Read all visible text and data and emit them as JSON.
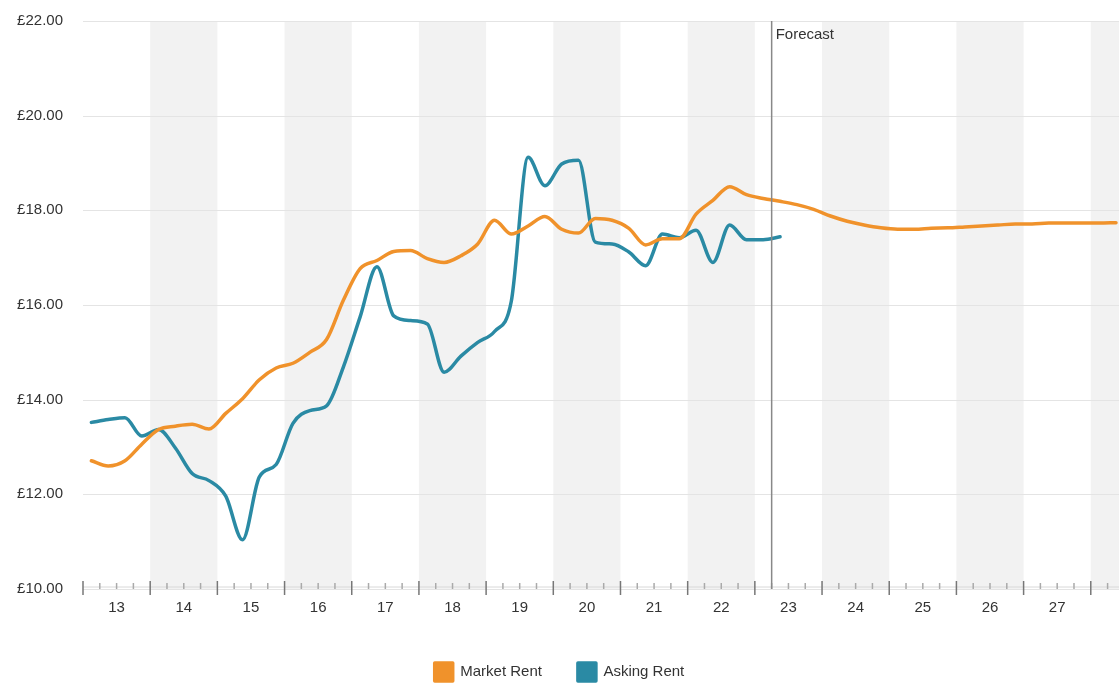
{
  "chart_data": {
    "type": "line",
    "xlim": [
      13,
      28.42
    ],
    "ylim": [
      10,
      22
    ],
    "yticks": [
      {
        "value": 10,
        "label": "£10.00"
      },
      {
        "value": 12,
        "label": "£12.00"
      },
      {
        "value": 14,
        "label": "£14.00"
      },
      {
        "value": 16,
        "label": "£16.00"
      },
      {
        "value": 18,
        "label": "£18.00"
      },
      {
        "value": 20,
        "label": "£20.00"
      },
      {
        "value": 22,
        "label": "£22.00"
      }
    ],
    "xticks": [
      {
        "value": 13,
        "label": null
      },
      {
        "value": 13.25,
        "label": null
      },
      {
        "value": 13.5,
        "label": "13"
      },
      {
        "value": 13.75,
        "label": null
      },
      {
        "value": 14,
        "label": null
      },
      {
        "value": 14.25,
        "label": null
      },
      {
        "value": 14.5,
        "label": "14"
      },
      {
        "value": 14.75,
        "label": null
      },
      {
        "value": 15,
        "label": null
      },
      {
        "value": 15.25,
        "label": null
      },
      {
        "value": 15.5,
        "label": "15"
      },
      {
        "value": 15.75,
        "label": null
      },
      {
        "value": 16,
        "label": null
      },
      {
        "value": 16.25,
        "label": null
      },
      {
        "value": 16.5,
        "label": "16"
      },
      {
        "value": 16.75,
        "label": null
      },
      {
        "value": 17,
        "label": null
      },
      {
        "value": 17.25,
        "label": null
      },
      {
        "value": 17.5,
        "label": "17"
      },
      {
        "value": 17.75,
        "label": null
      },
      {
        "value": 18,
        "label": null
      },
      {
        "value": 18.25,
        "label": null
      },
      {
        "value": 18.5,
        "label": "18"
      },
      {
        "value": 18.75,
        "label": null
      },
      {
        "value": 19,
        "label": null
      },
      {
        "value": 19.25,
        "label": null
      },
      {
        "value": 19.5,
        "label": "19"
      },
      {
        "value": 19.75,
        "label": null
      },
      {
        "value": 20,
        "label": null
      },
      {
        "value": 20.25,
        "label": null
      },
      {
        "value": 20.5,
        "label": "20"
      },
      {
        "value": 20.75,
        "label": null
      },
      {
        "value": 21,
        "label": null
      },
      {
        "value": 21.25,
        "label": null
      },
      {
        "value": 21.5,
        "label": "21"
      },
      {
        "value": 21.75,
        "label": null
      },
      {
        "value": 22,
        "label": null
      },
      {
        "value": 22.25,
        "label": null
      },
      {
        "value": 22.5,
        "label": "22"
      },
      {
        "value": 22.75,
        "label": null
      },
      {
        "value": 23,
        "label": null
      },
      {
        "value": 23.25,
        "label": null
      },
      {
        "value": 23.5,
        "label": "23"
      },
      {
        "value": 23.75,
        "label": null
      },
      {
        "value": 24,
        "label": null
      },
      {
        "value": 24.25,
        "label": null
      },
      {
        "value": 24.5,
        "label": "24"
      },
      {
        "value": 24.75,
        "label": null
      },
      {
        "value": 25,
        "label": null
      },
      {
        "value": 25.25,
        "label": null
      },
      {
        "value": 25.5,
        "label": "25"
      },
      {
        "value": 25.75,
        "label": null
      },
      {
        "value": 26,
        "label": null
      },
      {
        "value": 26.25,
        "label": null
      },
      {
        "value": 26.5,
        "label": "26"
      },
      {
        "value": 26.75,
        "label": null
      },
      {
        "value": 27,
        "label": null
      },
      {
        "value": 27.25,
        "label": null
      },
      {
        "value": 27.5,
        "label": "27"
      },
      {
        "value": 27.75,
        "label": null
      },
      {
        "value": 28,
        "label": null
      },
      {
        "value": 28.25,
        "label": null
      }
    ],
    "grid": "y",
    "legend": "bottom",
    "marker": "none",
    "line_style": "solid",
    "bands": [
      {
        "axis": "x",
        "from": 14,
        "to": 15,
        "color": "#f2f2f2"
      },
      {
        "axis": "x",
        "from": 16,
        "to": 17,
        "color": "#f2f2f2"
      },
      {
        "axis": "x",
        "from": 18,
        "to": 19,
        "color": "#f2f2f2"
      },
      {
        "axis": "x",
        "from": 20,
        "to": 21,
        "color": "#f2f2f2"
      },
      {
        "axis": "x",
        "from": 22,
        "to": 23,
        "color": "#f2f2f2"
      },
      {
        "axis": "x",
        "from": 24,
        "to": 25,
        "color": "#f2f2f2"
      },
      {
        "axis": "x",
        "from": 26,
        "to": 27,
        "color": "#f2f2f2"
      },
      {
        "axis": "x",
        "from": 28,
        "to": 28.42,
        "color": "#f2f2f2"
      }
    ],
    "ref_lines": [
      {
        "axis": "x",
        "value": 23.25,
        "label": "Forecast",
        "color": "#888888"
      }
    ],
    "series": [
      {
        "name": "Market Rent",
        "color": "#f0922b",
        "x": [
          13.125,
          13.375,
          13.625,
          13.875,
          14.125,
          14.375,
          14.625,
          14.875,
          15.125,
          15.375,
          15.625,
          15.875,
          16.125,
          16.375,
          16.625,
          16.875,
          17.125,
          17.375,
          17.625,
          17.875,
          18.125,
          18.375,
          18.625,
          18.875,
          19.125,
          19.375,
          19.625,
          19.875,
          20.125,
          20.375,
          20.625,
          20.875,
          21.125,
          21.375,
          21.625,
          21.875,
          22.125,
          22.375,
          22.625,
          22.875,
          23.125,
          23.375,
          23.625,
          23.875,
          24.125,
          24.375,
          24.625,
          24.875,
          25.125,
          25.375,
          25.625,
          25.875,
          26.125,
          26.375,
          26.625,
          26.875,
          27.125,
          27.375,
          27.625,
          27.875,
          28.125,
          28.375
        ],
        "values": [
          12.71,
          12.6,
          12.71,
          13.06,
          13.37,
          13.44,
          13.48,
          13.38,
          13.71,
          14.02,
          14.42,
          14.67,
          14.77,
          15.0,
          15.27,
          16.1,
          16.77,
          16.94,
          17.13,
          17.15,
          16.98,
          16.9,
          17.04,
          17.29,
          17.79,
          17.5,
          17.67,
          17.87,
          17.6,
          17.52,
          17.83,
          17.79,
          17.62,
          17.27,
          17.4,
          17.4,
          17.92,
          18.21,
          18.5,
          18.33,
          18.25,
          18.19,
          18.12,
          18.02,
          17.88,
          17.77,
          17.69,
          17.63,
          17.6,
          17.6,
          17.62,
          17.63,
          17.65,
          17.67,
          17.69,
          17.71,
          17.71,
          17.73,
          17.73,
          17.73,
          17.73,
          17.74
        ]
      },
      {
        "name": "Asking Rent",
        "color": "#2a8aa4",
        "x": [
          13.125,
          13.375,
          13.625,
          13.875,
          14.125,
          14.375,
          14.625,
          14.875,
          15.125,
          15.375,
          15.625,
          15.875,
          16.125,
          16.375,
          16.625,
          16.875,
          17.125,
          17.375,
          17.625,
          17.875,
          18.125,
          18.375,
          18.625,
          18.875,
          19.125,
          19.375,
          19.625,
          19.875,
          20.125,
          20.375,
          20.625,
          20.875,
          21.125,
          21.375,
          21.625,
          21.875,
          22.125,
          22.375,
          22.625,
          22.875,
          23.125,
          23.375
        ],
        "values": [
          13.52,
          13.58,
          13.62,
          13.23,
          13.37,
          12.98,
          12.44,
          12.29,
          11.96,
          11.04,
          12.37,
          12.63,
          13.5,
          13.77,
          13.87,
          14.69,
          15.75,
          16.81,
          15.77,
          15.67,
          15.6,
          14.58,
          14.92,
          15.21,
          15.44,
          16.08,
          19.12,
          18.52,
          18.98,
          19.06,
          17.33,
          17.29,
          17.12,
          16.83,
          17.5,
          17.42,
          17.58,
          16.9,
          17.69,
          17.38,
          17.38,
          17.44
        ]
      }
    ]
  }
}
